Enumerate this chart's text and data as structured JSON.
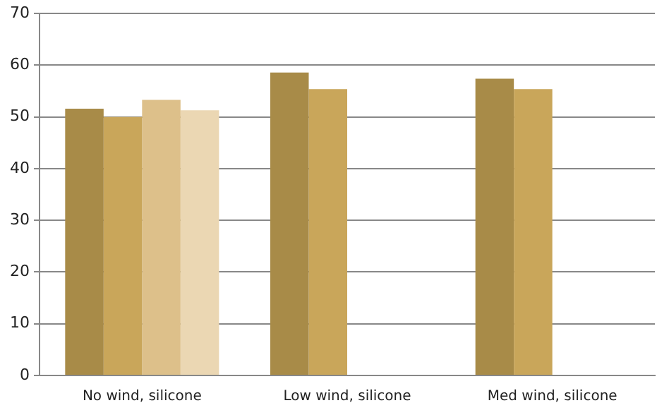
{
  "chart_data": {
    "type": "bar",
    "categories": [
      "No wind, silicone",
      "Low wind, silicone",
      "Med wind, silicone"
    ],
    "series": [
      {
        "color": "#a88b48",
        "values": [
          51.6,
          58.6,
          57.4
        ]
      },
      {
        "color": "#c9a65a",
        "values": [
          50,
          55.4,
          55.4
        ]
      },
      {
        "color": "#ddc08a",
        "values": [
          53.3,
          null,
          null
        ]
      },
      {
        "color": "#ebd7b3",
        "values": [
          51.3,
          null,
          null
        ]
      }
    ],
    "ylim": [
      0,
      70
    ],
    "yticks": [
      0,
      10,
      20,
      30,
      40,
      50,
      60,
      70
    ],
    "grid": "y",
    "legend": false
  }
}
